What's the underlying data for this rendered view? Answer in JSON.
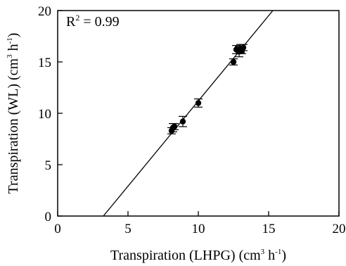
{
  "chart_data": {
    "type": "scatter",
    "xlabel": "Transpiration (LHPG) (cm",
    "xlabel_sup1": "3",
    "xlabel_mid": " h",
    "xlabel_sup2": "-1",
    "xlabel_end": ")",
    "ylabel": "Transpiration (WL)  (cm",
    "ylabel_sup1": "3",
    "ylabel_mid": " h",
    "ylabel_sup2": "-1",
    "ylabel_end": ")",
    "annotation": {
      "prefix": "R",
      "sup": "2",
      "suffix": " = 0.99"
    },
    "xlim": [
      0,
      20
    ],
    "ylim": [
      0,
      20
    ],
    "x_ticks": [
      "0",
      "5",
      "10",
      "15",
      "20"
    ],
    "y_ticks": [
      "0",
      "5",
      "10",
      "15",
      "20"
    ],
    "grid": false,
    "points": [
      {
        "x": 8.1,
        "y": 8.3,
        "err": 0.3
      },
      {
        "x": 8.2,
        "y": 8.6,
        "err": 0.4
      },
      {
        "x": 8.3,
        "y": 8.7,
        "err": 0.3
      },
      {
        "x": 8.9,
        "y": 9.2,
        "err": 0.5
      },
      {
        "x": 10.0,
        "y": 11.0,
        "err": 0.4
      },
      {
        "x": 12.5,
        "y": 15.0,
        "err": 0.3
      },
      {
        "x": 12.7,
        "y": 16.2,
        "err": 0.4
      },
      {
        "x": 12.9,
        "y": 16.0,
        "err": 0.5
      },
      {
        "x": 13.0,
        "y": 16.3,
        "err": 0.4
      },
      {
        "x": 13.1,
        "y": 16.1,
        "err": 0.3
      },
      {
        "x": 13.2,
        "y": 16.4,
        "err": 0.3
      }
    ],
    "regression_line": {
      "x1": 3.25,
      "y1": 0,
      "x2": 15.3,
      "y2": 20
    }
  }
}
